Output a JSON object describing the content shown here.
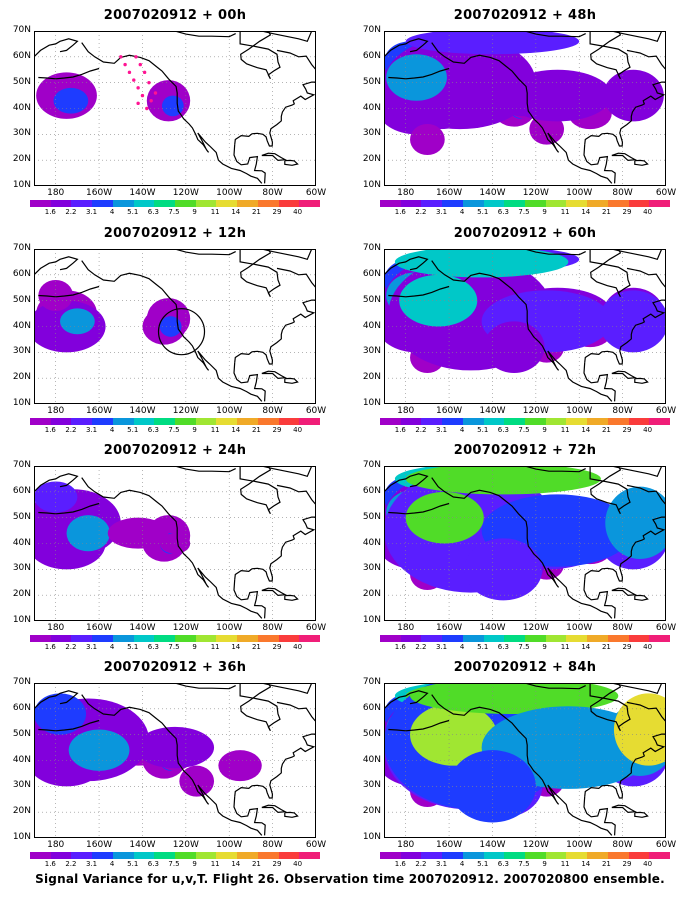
{
  "panels": [
    {
      "title": "2007020912 + 00h",
      "level": 0,
      "forecast_hour": "00h"
    },
    {
      "title": "2007020912 + 12h",
      "level": 1,
      "forecast_hour": "12h"
    },
    {
      "title": "2007020912 + 24h",
      "level": 2,
      "forecast_hour": "24h"
    },
    {
      "title": "2007020912 + 36h",
      "level": 3,
      "forecast_hour": "36h"
    },
    {
      "title": "2007020912 + 48h",
      "level": 4,
      "forecast_hour": "48h"
    },
    {
      "title": "2007020912 + 60h",
      "level": 5,
      "forecast_hour": "60h"
    },
    {
      "title": "2007020912 + 72h",
      "level": 6,
      "forecast_hour": "72h"
    },
    {
      "title": "2007020912 + 84h",
      "level": 7,
      "forecast_hour": "84h"
    }
  ],
  "lat_labels": [
    "70N",
    "60N",
    "50N",
    "40N",
    "30N",
    "20N",
    "10N"
  ],
  "lon_labels": [
    "180",
    "160W",
    "140W",
    "120W",
    "100W",
    "80W",
    "60W"
  ],
  "colorbar": {
    "labels": [
      "1.6",
      "2.2",
      "3.1",
      "4",
      "5.1",
      "6.3",
      "7.5",
      "9",
      "11",
      "14",
      "21",
      "29",
      "40"
    ],
    "colors": [
      "#a000c8",
      "#8200dc",
      "#5a1eff",
      "#1e3cff",
      "#0a96dc",
      "#00c8c8",
      "#00dc82",
      "#50dc28",
      "#a0e632",
      "#e6dc32",
      "#f0aa28",
      "#fa782d",
      "#fa3c3c",
      "#f01e78"
    ]
  },
  "caption": "Signal Variance for u,v,T. Flight 26. Observation time 2007020912. 2007020800 ensemble.",
  "annotations": {
    "panel_00h": "magenta dotted flight track",
    "panel_12h": "circle marking observation region"
  }
}
